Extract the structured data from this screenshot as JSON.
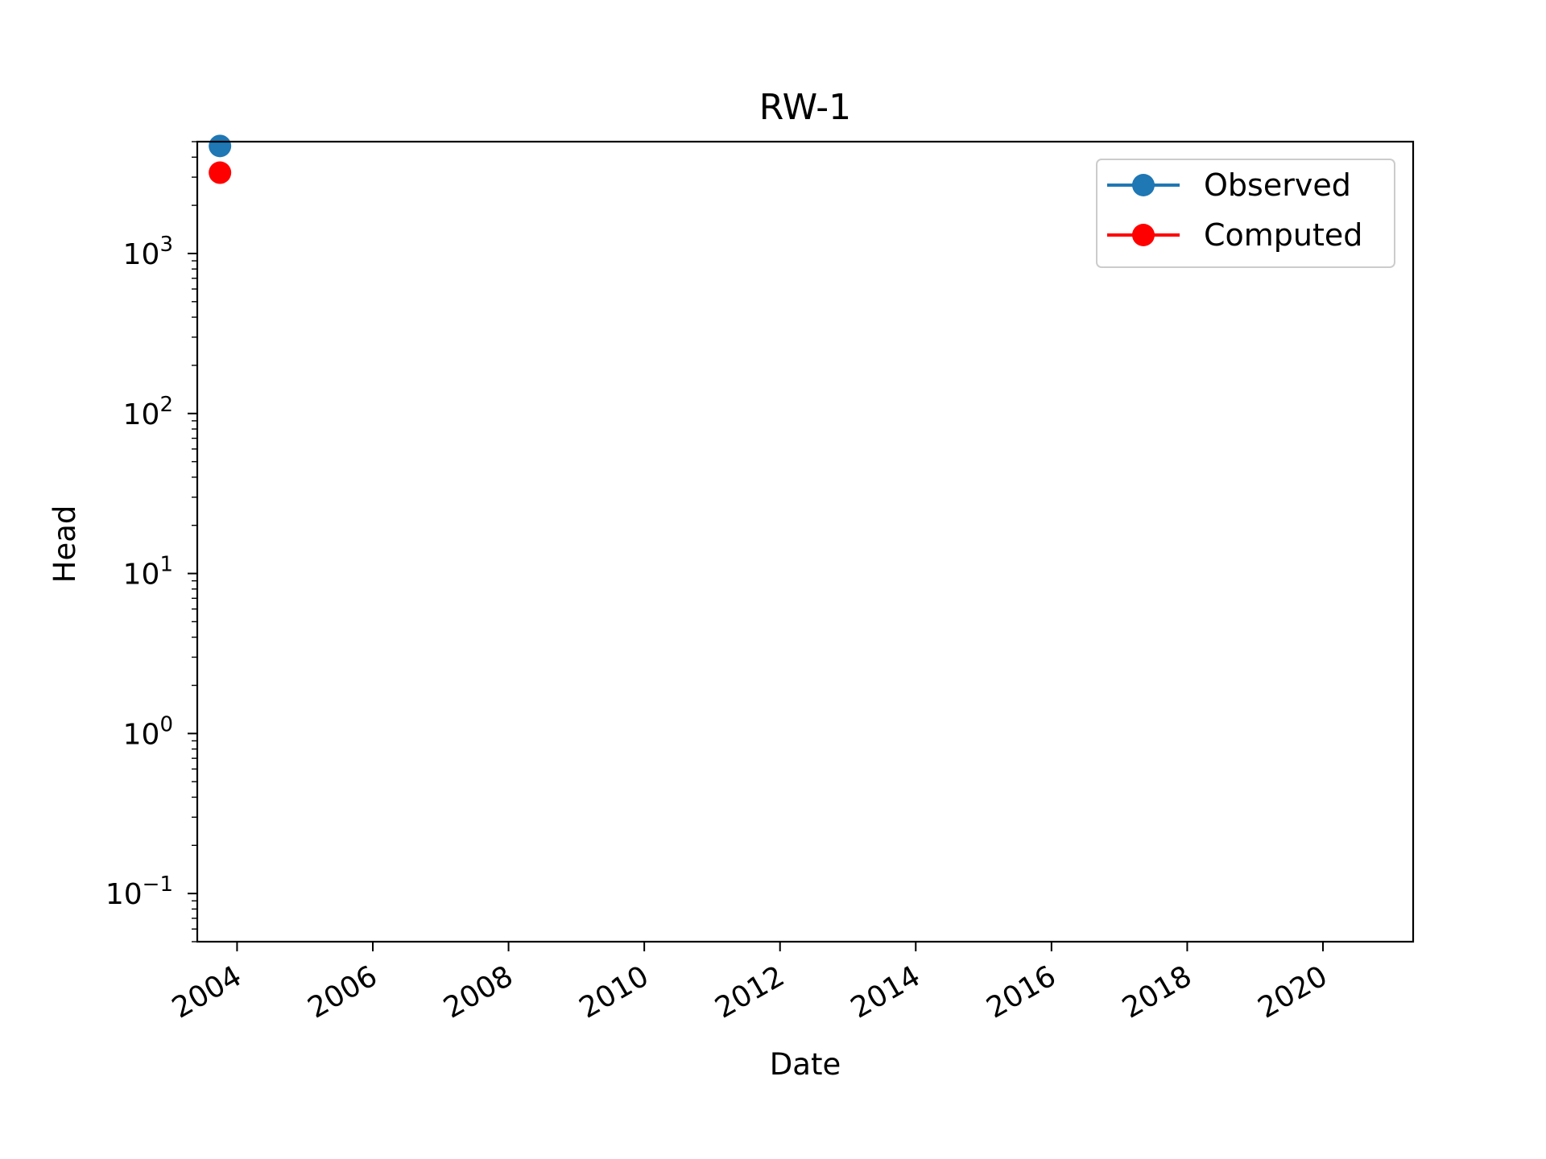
{
  "chart_data": {
    "type": "line",
    "title": "RW-1",
    "xlabel": "Date",
    "ylabel": "Head",
    "yscale": "log",
    "ylim": [
      0.05,
      5000
    ],
    "xlim": [
      "2003-06-01",
      "2021-05-01"
    ],
    "x_ticks": [
      "2004",
      "2006",
      "2008",
      "2010",
      "2012",
      "2014",
      "2016",
      "2018",
      "2020"
    ],
    "y_ticks": [
      {
        "value": 0.1,
        "base": "10",
        "exp": "−1"
      },
      {
        "value": 1,
        "base": "10",
        "exp": "0"
      },
      {
        "value": 10,
        "base": "10",
        "exp": "1"
      },
      {
        "value": 100,
        "base": "10",
        "exp": "2"
      },
      {
        "value": 1000,
        "base": "10",
        "exp": "3"
      }
    ],
    "grid": false,
    "legend_position": "top-right",
    "series": [
      {
        "name": "Observed",
        "color": "#1f77b4",
        "marker": "circle",
        "points": [
          {
            "x": "2003-10-01",
            "y": 4700
          }
        ]
      },
      {
        "name": "Computed",
        "color": "#ff0000",
        "marker": "circle",
        "points": [
          {
            "x": "2003-10-01",
            "y": 3200
          }
        ]
      }
    ]
  }
}
